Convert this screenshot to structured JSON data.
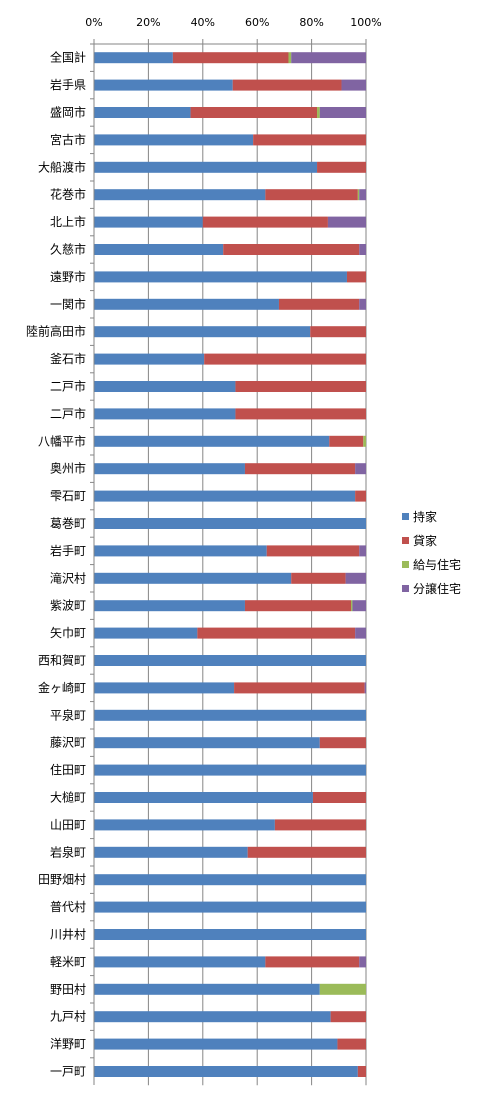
{
  "chart_data": {
    "type": "bar",
    "orientation": "horizontal",
    "stacked": true,
    "percent": true,
    "title": "",
    "xlabel": "",
    "ylabel": "",
    "xlim": [
      0,
      100
    ],
    "x_ticks": [
      "0%",
      "20%",
      "40%",
      "60%",
      "80%",
      "100%"
    ],
    "grid": true,
    "legend_position": "right",
    "categories": [
      "全国計",
      "岩手県",
      "盛岡市",
      "宮古市",
      "大船渡市",
      "花巻市",
      "北上市",
      "久慈市",
      "遠野市",
      "一関市",
      "陸前高田市",
      "釜石市",
      "二戸市",
      "二戸市",
      "八幡平市",
      "奥州市",
      "雫石町",
      "葛巻町",
      "岩手町",
      "滝沢村",
      "紫波町",
      "矢巾町",
      "西和賀町",
      "金ヶ崎町",
      "平泉町",
      "藤沢町",
      "住田町",
      "大槌町",
      "山田町",
      "岩泉町",
      "田野畑村",
      "普代村",
      "川井村",
      "軽米町",
      "野田村",
      "九戸村",
      "洋野町",
      "一戸町"
    ],
    "series": [
      {
        "name": "持家",
        "color": "#4f81bd",
        "values": [
          29.0,
          51.0,
          35.5,
          58.5,
          82.0,
          63.0,
          40.0,
          47.5,
          93.0,
          68.0,
          79.5,
          40.5,
          52.0,
          52.0,
          86.5,
          55.5,
          96.0,
          100.0,
          63.5,
          72.5,
          55.5,
          38.0,
          100.0,
          51.5,
          100.0,
          83.0,
          100.0,
          80.5,
          66.5,
          56.5,
          100.0,
          100.0,
          100.0,
          63.0,
          83.0,
          87.0,
          89.5,
          97.0
        ]
      },
      {
        "name": "貸家",
        "color": "#c0504d",
        "values": [
          42.5,
          40.0,
          46.5,
          41.5,
          18.0,
          34.0,
          46.0,
          50.0,
          7.0,
          29.5,
          20.5,
          59.5,
          48.0,
          48.0,
          12.5,
          40.5,
          4.0,
          0.0,
          34.0,
          20.0,
          39.0,
          58.0,
          0.0,
          48.0,
          0.0,
          17.0,
          0.0,
          19.5,
          33.5,
          43.5,
          0.0,
          0.0,
          0.0,
          34.5,
          0.0,
          13.0,
          10.5,
          3.0
        ]
      },
      {
        "name": "給与住宅",
        "color": "#9bbb59",
        "values": [
          1.0,
          0.0,
          1.0,
          0.0,
          0.0,
          0.5,
          0.0,
          0.0,
          0.0,
          0.0,
          0.0,
          0.0,
          0.0,
          0.0,
          1.0,
          0.0,
          0.0,
          0.0,
          0.0,
          0.0,
          0.5,
          0.0,
          0.0,
          0.0,
          0.0,
          0.0,
          0.0,
          0.0,
          0.0,
          0.0,
          0.0,
          0.0,
          0.0,
          0.0,
          17.0,
          0.0,
          0.0,
          0.0
        ]
      },
      {
        "name": "分譲住宅",
        "color": "#8064a2",
        "values": [
          27.5,
          9.0,
          17.0,
          0.0,
          0.0,
          2.5,
          14.0,
          2.5,
          0.0,
          2.5,
          0.0,
          0.0,
          0.0,
          0.0,
          0.0,
          4.0,
          0.0,
          0.0,
          2.5,
          7.5,
          5.0,
          4.0,
          0.0,
          0.5,
          0.0,
          0.0,
          0.0,
          0.0,
          0.0,
          0.0,
          0.0,
          0.0,
          0.0,
          2.5,
          0.0,
          0.0,
          0.0,
          0.0
        ]
      }
    ]
  }
}
